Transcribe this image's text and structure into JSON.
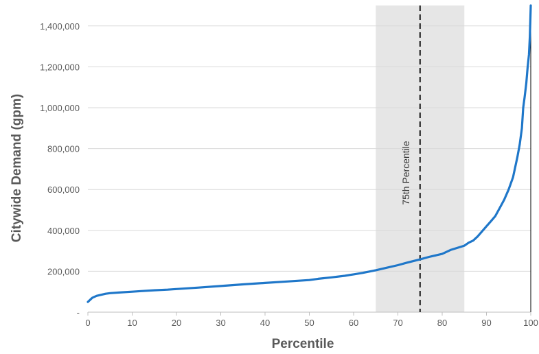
{
  "chart_data": {
    "type": "line",
    "title": "",
    "xlabel": "Percentile",
    "ylabel": "Citywide Demand (gpm)",
    "xlim": [
      0,
      100
    ],
    "ylim": [
      0,
      1500000
    ],
    "x_ticks": [
      0,
      10,
      20,
      30,
      40,
      50,
      60,
      70,
      80,
      90,
      100
    ],
    "x_tick_labels": [
      "0",
      "10",
      "20",
      "30",
      "40",
      "50",
      "60",
      "70",
      "80",
      "90",
      "100"
    ],
    "y_ticks": [
      0,
      200000,
      400000,
      600000,
      800000,
      1000000,
      1200000,
      1400000
    ],
    "y_tick_labels": [
      "-",
      "200,000",
      "400,000",
      "600,000",
      "800,000",
      "1,000,000",
      "1,200,000",
      "1,400,000"
    ],
    "grid": "horizontal",
    "colors": {
      "line": "#1f77c9",
      "band": "#e6e6e6",
      "grid": "#d9d9d9",
      "marker_line": "#404040"
    },
    "band": {
      "x_start": 65,
      "x_end": 85
    },
    "reference_line": {
      "x": 75,
      "label": "75th Percentile"
    },
    "series": [
      {
        "x": [
          0,
          0.5,
          1,
          1.5,
          2,
          3,
          4,
          5,
          7,
          10,
          12,
          15,
          18,
          20,
          25,
          30,
          35,
          40,
          45,
          50,
          52,
          55,
          58,
          60,
          62,
          65,
          67,
          70,
          72,
          75,
          77,
          80,
          82,
          85,
          86,
          87,
          88,
          89,
          90,
          91,
          92,
          93,
          94,
          95,
          96,
          97,
          97.5,
          98,
          98.3,
          98.6,
          99,
          99.3,
          99.6,
          99.8,
          100
        ],
        "y": [
          50000,
          60000,
          70000,
          75000,
          80000,
          85000,
          90000,
          93000,
          96000,
          100000,
          103000,
          107000,
          110000,
          113000,
          120000,
          128000,
          136000,
          143000,
          150000,
          157000,
          163000,
          170000,
          178000,
          185000,
          192000,
          205000,
          215000,
          230000,
          242000,
          258000,
          270000,
          285000,
          305000,
          325000,
          340000,
          350000,
          370000,
          395000,
          420000,
          445000,
          470000,
          510000,
          550000,
          600000,
          660000,
          760000,
          820000,
          900000,
          1000000,
          1050000,
          1120000,
          1200000,
          1260000,
          1350000,
          1500000
        ]
      }
    ]
  }
}
